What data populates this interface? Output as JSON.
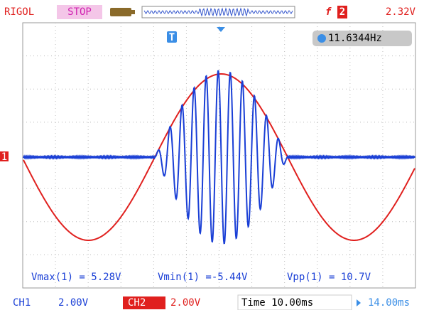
{
  "top_bar": {
    "brand": "RIGOL",
    "status": "STOP",
    "trigger_source": "2",
    "trigger_level": "2.32V"
  },
  "trigger_marker": "T",
  "channel_marker": "1",
  "frequency": "11.6344Hz",
  "measurements": [
    "Vmax(1) = 5.28V",
    "Vmin(1) =-5.44V",
    "Vpp(1) = 10.7V"
  ],
  "bottom_bar": {
    "ch1_label": "CH1",
    "ch1_scale": "2.00V",
    "ch2_label": "CH2",
    "ch2_scale": "2.00V",
    "time": "Time 10.00ms",
    "offset": "14.00ms"
  }
}
